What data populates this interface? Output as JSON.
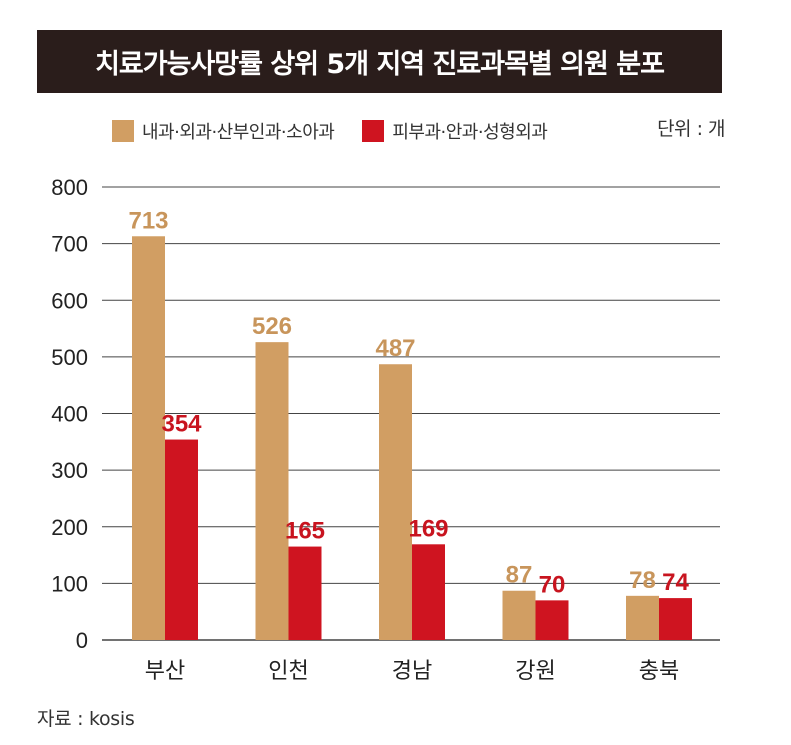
{
  "title": "치료가능사망률 상위 5개 지역 진료과목별 의원 분포",
  "unit_label": "단위 : 개",
  "source_label": "자료 : kosis",
  "colors": {
    "series1": "#d19e63",
    "series2": "#cf1420",
    "label1": "#c8955b",
    "label2": "#c8141f",
    "grid": "#444444",
    "title_bg": "#2a1d1b"
  },
  "chart_data": {
    "type": "bar",
    "categories": [
      "부산",
      "인천",
      "경남",
      "강원",
      "충북"
    ],
    "series": [
      {
        "name": "내과·외과·산부인과·소아과",
        "values": [
          713,
          526,
          487,
          87,
          78
        ]
      },
      {
        "name": "피부과·안과·성형외과",
        "values": [
          354,
          165,
          169,
          70,
          74
        ]
      }
    ],
    "yticks": [
      0,
      100,
      200,
      300,
      400,
      500,
      600,
      700,
      800
    ],
    "ylim": [
      0,
      800
    ],
    "grid": true,
    "legend": "top-left"
  }
}
